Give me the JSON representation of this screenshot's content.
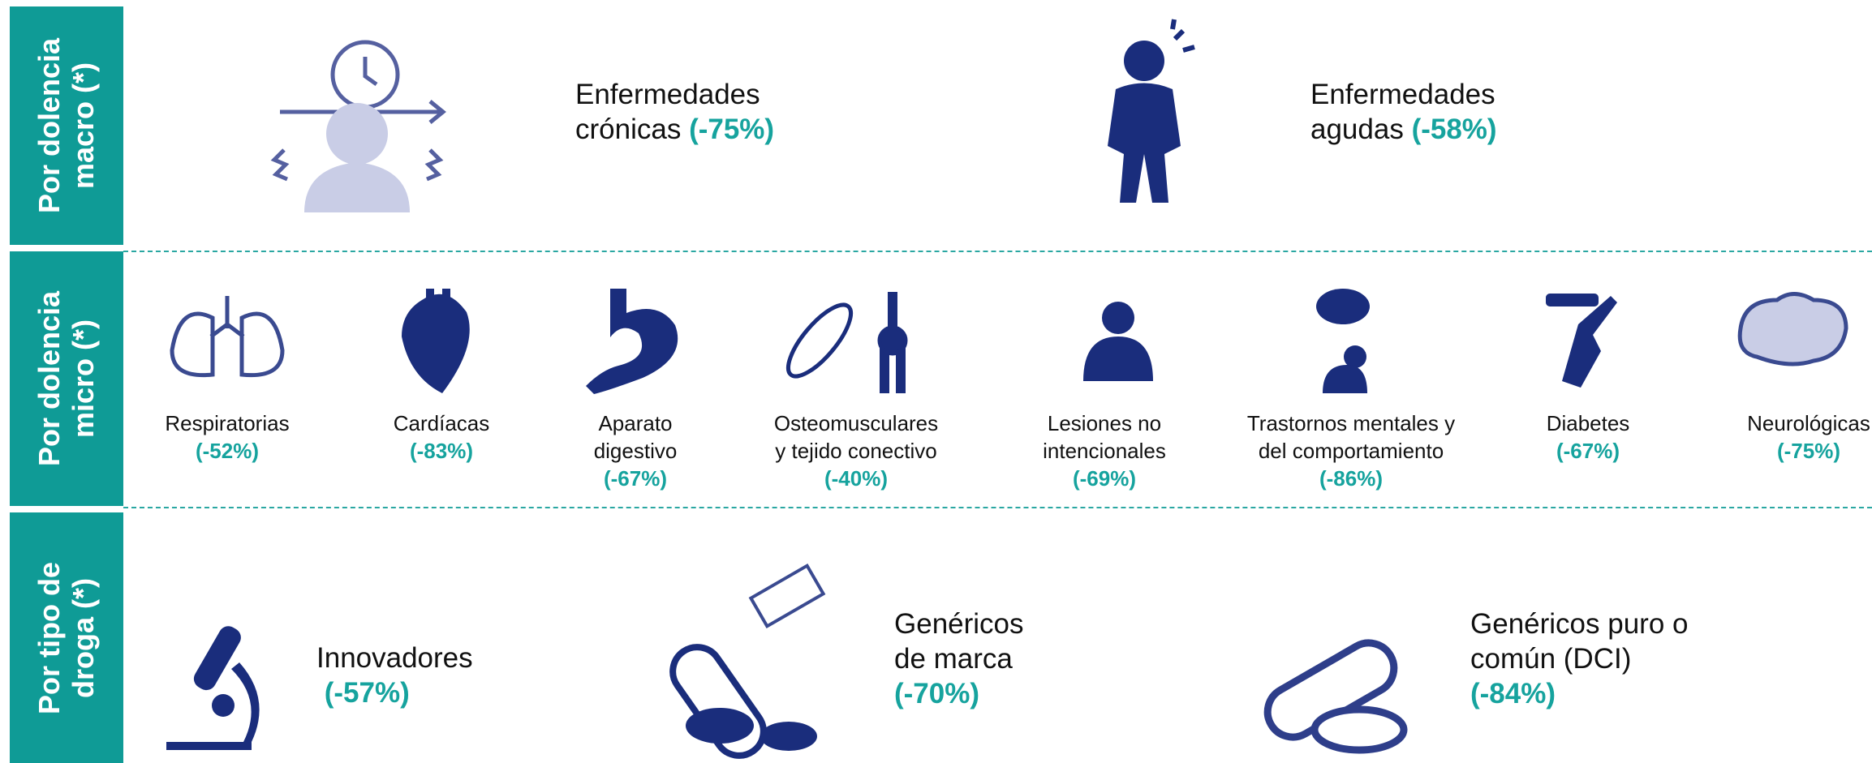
{
  "rows": [
    {
      "label": "Por dolencia macro (*)",
      "items": [
        {
          "lines": [
            "Enfermedades",
            "crónicas"
          ],
          "pct": "(-75%)"
        },
        {
          "lines": [
            "Enfermedades",
            "agudas"
          ],
          "pct": "(-58%)"
        }
      ]
    },
    {
      "label": "Por dolencia micro (*)",
      "items": [
        {
          "lines": [
            "Respiratorias"
          ],
          "pct": "(-52%)"
        },
        {
          "lines": [
            "Cardíacas"
          ],
          "pct": "(-83%)"
        },
        {
          "lines": [
            "Aparato",
            "digestivo"
          ],
          "pct": "(-67%)"
        },
        {
          "lines": [
            "Osteomusculares",
            "y tejido conectivo"
          ],
          "pct": "(-40%)"
        },
        {
          "lines": [
            "Lesiones no",
            "intencionales"
          ],
          "pct": "(-69%)"
        },
        {
          "lines": [
            "Trastornos mentales y",
            "del comportamiento"
          ],
          "pct": "(-86%)"
        },
        {
          "lines": [
            "Diabetes"
          ],
          "pct": "(-67%)"
        },
        {
          "lines": [
            "Neurológicas"
          ],
          "pct": "(-75%)"
        }
      ]
    },
    {
      "label": "Por tipo de droga (*)",
      "items": [
        {
          "lines": [
            "Innovadores"
          ],
          "pct": "(-57%)"
        },
        {
          "lines": [
            "Genéricos",
            "de marca"
          ],
          "pct": "(-70%)"
        },
        {
          "lines": [
            "Genéricos puro o",
            "común (DCI)"
          ],
          "pct": "(-84%)"
        }
      ]
    }
  ]
}
